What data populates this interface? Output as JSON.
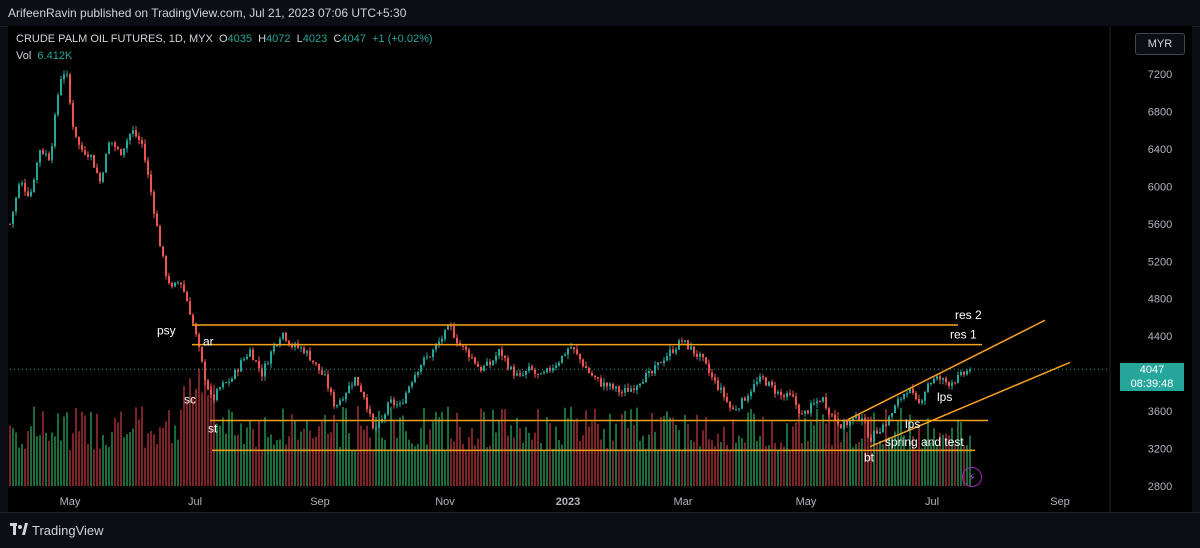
{
  "header": {
    "published": "ArifeenRavin published on TradingView.com, Jul 21, 2023 07:06 UTC+5:30"
  },
  "legend": {
    "symbol": "CRUDE PALM OIL FUTURES, 1D, MYX",
    "o_label": "O",
    "o_value": "4035",
    "h_label": "H",
    "h_value": "4072",
    "l_label": "L",
    "l_value": "4023",
    "c_label": "C",
    "c_value": "4047",
    "change": "+1 (+0.02%)",
    "vol_label": "Vol",
    "vol_value": "6.412K"
  },
  "currency": "MYR",
  "price_tag": {
    "price": "4047",
    "countdown": "08:39:48"
  },
  "footer": {
    "brand": "TradingView"
  },
  "colors": {
    "up": "#26a69a",
    "down": "#ef5350",
    "vol_up": "#1b6b3a",
    "vol_down": "#7a2428",
    "level": "#f7a21b",
    "bg": "#000000"
  },
  "chart_data": {
    "type": "candlestick",
    "ylim": [
      2800,
      7400
    ],
    "yticks": [
      "7200",
      "6800",
      "6400",
      "6000",
      "5600",
      "5200",
      "4800",
      "4400",
      "4000",
      "3600",
      "3200",
      "2800"
    ],
    "ytick_values": [
      7200,
      6800,
      6400,
      6000,
      5600,
      5200,
      4800,
      4400,
      4000,
      3600,
      3200,
      2800
    ],
    "xticks": [
      "May",
      "Jul",
      "Sep",
      "Nov",
      "2023",
      "Mar",
      "May",
      "Jul",
      "Sep"
    ],
    "xtick_x": [
      70,
      195,
      320,
      445,
      568,
      683,
      806,
      932,
      1060
    ],
    "price_path": [
      [
        10,
        5600
      ],
      [
        20,
        6050
      ],
      [
        30,
        5900
      ],
      [
        40,
        6400
      ],
      [
        50,
        6300
      ],
      [
        60,
        7150
      ],
      [
        66,
        7250
      ],
      [
        72,
        6700
      ],
      [
        80,
        6400
      ],
      [
        90,
        6350
      ],
      [
        100,
        6050
      ],
      [
        110,
        6500
      ],
      [
        120,
        6350
      ],
      [
        132,
        6600
      ],
      [
        142,
        6450
      ],
      [
        150,
        6000
      ],
      [
        158,
        5500
      ],
      [
        165,
        5100
      ],
      [
        172,
        4900
      ],
      [
        180,
        5000
      ],
      [
        188,
        4750
      ],
      [
        196,
        4400
      ],
      [
        204,
        4000
      ],
      [
        212,
        3700
      ],
      [
        220,
        3850
      ],
      [
        232,
        3950
      ],
      [
        240,
        4100
      ],
      [
        250,
        4250
      ],
      [
        262,
        4000
      ],
      [
        272,
        4250
      ],
      [
        282,
        4450
      ],
      [
        292,
        4300
      ],
      [
        305,
        4250
      ],
      [
        315,
        4100
      ],
      [
        325,
        3950
      ],
      [
        335,
        3650
      ],
      [
        345,
        3800
      ],
      [
        355,
        3950
      ],
      [
        365,
        3750
      ],
      [
        373,
        3400
      ],
      [
        380,
        3450
      ],
      [
        390,
        3700
      ],
      [
        400,
        3650
      ],
      [
        410,
        3900
      ],
      [
        420,
        4100
      ],
      [
        430,
        4200
      ],
      [
        440,
        4350
      ],
      [
        450,
        4500
      ],
      [
        460,
        4300
      ],
      [
        470,
        4200
      ],
      [
        480,
        4050
      ],
      [
        490,
        4100
      ],
      [
        500,
        4250
      ],
      [
        510,
        4050
      ],
      [
        520,
        3950
      ],
      [
        530,
        4050
      ],
      [
        540,
        3950
      ],
      [
        550,
        4050
      ],
      [
        560,
        4150
      ],
      [
        570,
        4300
      ],
      [
        580,
        4150
      ],
      [
        590,
        4000
      ],
      [
        600,
        3900
      ],
      [
        612,
        3850
      ],
      [
        622,
        3800
      ],
      [
        632,
        3850
      ],
      [
        642,
        3950
      ],
      [
        652,
        4000
      ],
      [
        662,
        4150
      ],
      [
        672,
        4250
      ],
      [
        682,
        4350
      ],
      [
        692,
        4250
      ],
      [
        702,
        4150
      ],
      [
        712,
        3950
      ],
      [
        722,
        3800
      ],
      [
        732,
        3600
      ],
      [
        742,
        3700
      ],
      [
        752,
        3850
      ],
      [
        762,
        3950
      ],
      [
        772,
        3850
      ],
      [
        782,
        3750
      ],
      [
        792,
        3750
      ],
      [
        802,
        3550
      ],
      [
        812,
        3650
      ],
      [
        822,
        3750
      ],
      [
        832,
        3550
      ],
      [
        842,
        3450
      ],
      [
        852,
        3500
      ],
      [
        862,
        3550
      ],
      [
        870,
        3300
      ],
      [
        878,
        3400
      ],
      [
        888,
        3500
      ],
      [
        898,
        3700
      ],
      [
        908,
        3850
      ],
      [
        918,
        3650
      ],
      [
        928,
        3900
      ],
      [
        938,
        3950
      ],
      [
        948,
        3900
      ],
      [
        958,
        3950
      ],
      [
        970,
        4047
      ]
    ],
    "levels": [
      {
        "name": "res 2",
        "y1": 4520,
        "y2": 4520,
        "x1": 192,
        "x2": 958
      },
      {
        "name": "res 1",
        "y1": 4310,
        "y2": 4310,
        "x1": 192,
        "x2": 982
      },
      {
        "name": "",
        "y1": 3500,
        "y2": 3500,
        "x1": 210,
        "x2": 988
      },
      {
        "name": "",
        "y1": 3180,
        "y2": 3180,
        "x1": 212,
        "x2": 975
      }
    ],
    "channel": [
      {
        "x1": 848,
        "y1": 3510,
        "x2": 1045,
        "y2": 4570
      },
      {
        "x1": 870,
        "y1": 3220,
        "x2": 1070,
        "y2": 4120
      }
    ],
    "annotations": [
      {
        "text": "psy",
        "x": 157,
        "price": 4420
      },
      {
        "text": "ar",
        "x": 203,
        "price": 4300
      },
      {
        "text": "sc",
        "x": 184,
        "price": 3680
      },
      {
        "text": "st",
        "x": 208,
        "price": 3370
      },
      {
        "text": "lps",
        "x": 905,
        "price": 3420
      },
      {
        "text": "lps",
        "x": 937,
        "price": 3710
      },
      {
        "text": "bt",
        "x": 864,
        "price": 3060
      },
      {
        "text": "spring and test",
        "x": 885,
        "price": 3225
      },
      {
        "text": "res 2",
        "x": 955,
        "price": 4585
      },
      {
        "text": "res 1",
        "x": 950,
        "price": 4375
      }
    ],
    "last_price": 4047
  }
}
